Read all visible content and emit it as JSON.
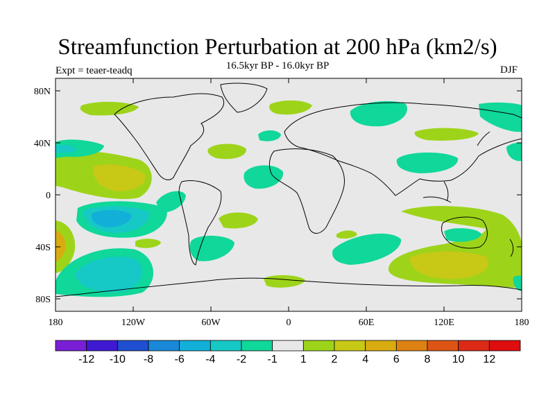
{
  "title": "Streamfunction Perturbation at 200 hPa (km2/s)",
  "subtitle": "16.5kyr BP - 16.0kyr BP",
  "experiment": "Expt = teaer-teadq",
  "season": "DJF",
  "colors": {
    "background": "#e8e8e8",
    "land_outline": "#000000"
  },
  "axes": {
    "lat_labels": [
      "80N",
      "40N",
      "0",
      "40S",
      "80S"
    ],
    "lon_labels": [
      "180",
      "120W",
      "60W",
      "0",
      "60E",
      "120E",
      "180"
    ]
  },
  "colorbar": {
    "colors": [
      "#7a1fd6",
      "#3f19d2",
      "#1f4fd0",
      "#1a88d8",
      "#12b0d8",
      "#16c9c6",
      "#10d79a",
      "#e8e8e8",
      "#9dd41a",
      "#c8c816",
      "#d8ab10",
      "#dc8112",
      "#dc5514",
      "#dc2a16",
      "#de0e0e"
    ],
    "labels": [
      "-12",
      "-10",
      "-8",
      "-6",
      "-4",
      "-2",
      "-1",
      "1",
      "2",
      "4",
      "6",
      "8",
      "10",
      "12"
    ]
  }
}
